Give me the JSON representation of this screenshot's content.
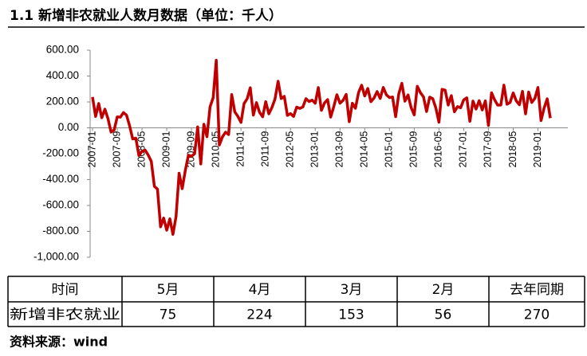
{
  "chart_data": {
    "type": "line",
    "title": "1.1 新增非农就业人数月数据（单位：千人）",
    "categories": [
      "2007-01",
      null,
      null,
      null,
      null,
      null,
      null,
      null,
      "2007-09",
      null,
      null,
      null,
      null,
      null,
      null,
      null,
      "2008-05",
      null,
      null,
      null,
      null,
      null,
      null,
      null,
      "2009-01",
      null,
      null,
      null,
      null,
      null,
      null,
      null,
      "2009-09",
      null,
      null,
      null,
      null,
      null,
      null,
      null,
      "2010-05",
      null,
      null,
      null,
      null,
      null,
      null,
      null,
      "2011-01",
      null,
      null,
      null,
      null,
      null,
      null,
      null,
      "2011-09",
      null,
      null,
      null,
      null,
      null,
      null,
      null,
      "2012-05",
      null,
      null,
      null,
      null,
      null,
      null,
      null,
      "2013-01",
      null,
      null,
      null,
      null,
      null,
      null,
      null,
      "2013-09",
      null,
      null,
      null,
      null,
      null,
      null,
      null,
      "2014-05",
      null,
      null,
      null,
      null,
      null,
      null,
      null,
      "2015-01",
      null,
      null,
      null,
      null,
      null,
      null,
      null,
      "2015-09",
      null,
      null,
      null,
      null,
      null,
      null,
      null,
      "2016-05",
      null,
      null,
      null,
      null,
      null,
      null,
      null,
      "2017-01",
      null,
      null,
      null,
      null,
      null,
      null,
      null,
      "2017-09",
      null,
      null,
      null,
      null,
      null,
      null,
      null,
      "2018-05",
      null,
      null,
      null,
      null,
      null,
      null,
      null,
      "2019-01",
      null,
      null,
      null,
      null
    ],
    "series": [
      {
        "color": "#c00000",
        "values": [
          238,
          88,
          188,
          78,
          144,
          71,
          -33,
          -16,
          85,
          82,
          118,
          97,
          15,
          -86,
          -80,
          -214,
          -182,
          -172,
          -210,
          -259,
          -452,
          -474,
          -765,
          -697,
          -791,
          -703,
          -823,
          -686,
          -351,
          -470,
          -329,
          -212,
          -219,
          -200,
          7,
          -279,
          28,
          -69,
          163,
          232,
          522,
          -133,
          -70,
          -34,
          -52,
          257,
          123,
          88,
          42,
          188,
          225,
          310,
          98,
          195,
          120,
          85,
          202,
          108,
          157,
          223,
          360,
          226,
          243,
          96,
          110,
          88,
          160,
          150,
          161,
          225,
          203,
          214,
          190,
          311,
          135,
          192,
          218,
          83,
          164,
          256,
          190,
          212,
          258,
          47,
          190,
          151,
          272,
          329,
          246,
          304,
          202,
          230,
          280,
          227,
          312,
          255,
          234,
          238,
          86,
          262,
          344,
          206,
          254,
          157,
          100,
          321,
          272,
          239,
          126,
          237,
          225,
          153,
          43,
          297,
          291,
          176,
          249,
          124,
          164,
          155,
          216,
          232,
          50,
          207,
          145,
          210,
          138,
          208,
          18,
          271,
          216,
          175,
          176,
          330,
          182,
          196,
          270,
          208,
          178,
          282,
          108,
          277,
          196,
          227,
          312,
          56,
          153,
          224,
          75
        ]
      }
    ],
    "ylim": [
      -1000,
      600
    ],
    "yticks": [
      {
        "value": -1000,
        "label": "-1,000.00"
      },
      {
        "value": -800,
        "label": "-800.00"
      },
      {
        "value": -600,
        "label": "-600.00"
      },
      {
        "value": -400,
        "label": "-400.00"
      },
      {
        "value": -200,
        "label": "-200.00"
      },
      {
        "value": 0,
        "label": "0.00"
      },
      {
        "value": 200,
        "label": "200.00"
      },
      {
        "value": 400,
        "label": "400.00"
      },
      {
        "value": 600,
        "label": "600.00"
      }
    ]
  },
  "table": {
    "header": [
      "时间",
      "5月",
      "4月",
      "3月",
      "2月",
      "去年同期"
    ],
    "rows": [
      [
        "新增非农就业",
        75,
        224,
        153,
        56,
        270
      ]
    ]
  },
  "source": "资料来源：wind"
}
